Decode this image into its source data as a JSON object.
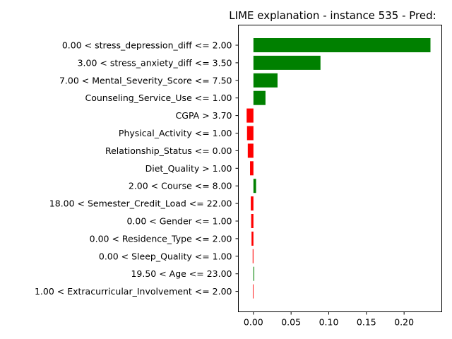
{
  "chart_data": {
    "type": "bar",
    "orientation": "horizontal",
    "title": "LIME explanation - instance 535 - Pred:",
    "xlabel": "",
    "ylabel": "",
    "xlim": [
      -0.02,
      0.25
    ],
    "xticks": [
      0.0,
      0.05,
      0.1,
      0.15,
      0.2
    ],
    "xtick_labels": [
      "0.00",
      "0.05",
      "0.10",
      "0.15",
      "0.20"
    ],
    "grid": false,
    "positive_color": "#008000",
    "negative_color": "#ff0000",
    "categories": [
      "0.00 < stress_depression_diff <= 2.00",
      "3.00 < stress_anxiety_diff <= 3.50",
      "7.00 < Mental_Severity_Score <= 7.50",
      "Counseling_Service_Use <= 1.00",
      "CGPA > 3.70",
      "Physical_Activity <= 1.00",
      "Relationship_Status <= 0.00",
      "Diet_Quality > 1.00",
      "2.00 < Course <= 8.00",
      "18.00 < Semester_Credit_Load <= 22.00",
      "0.00 < Gender <= 1.00",
      "0.00 < Residence_Type <= 2.00",
      "0.00 < Sleep_Quality <= 1.00",
      "19.50 < Age <= 23.00",
      "1.00 < Extracurricular_Involvement <= 2.00"
    ],
    "values": [
      0.235,
      0.089,
      0.032,
      0.016,
      -0.009,
      -0.0085,
      -0.0075,
      -0.0045,
      0.0035,
      -0.0035,
      -0.003,
      -0.0025,
      -0.001,
      0.001,
      -0.0008
    ]
  }
}
